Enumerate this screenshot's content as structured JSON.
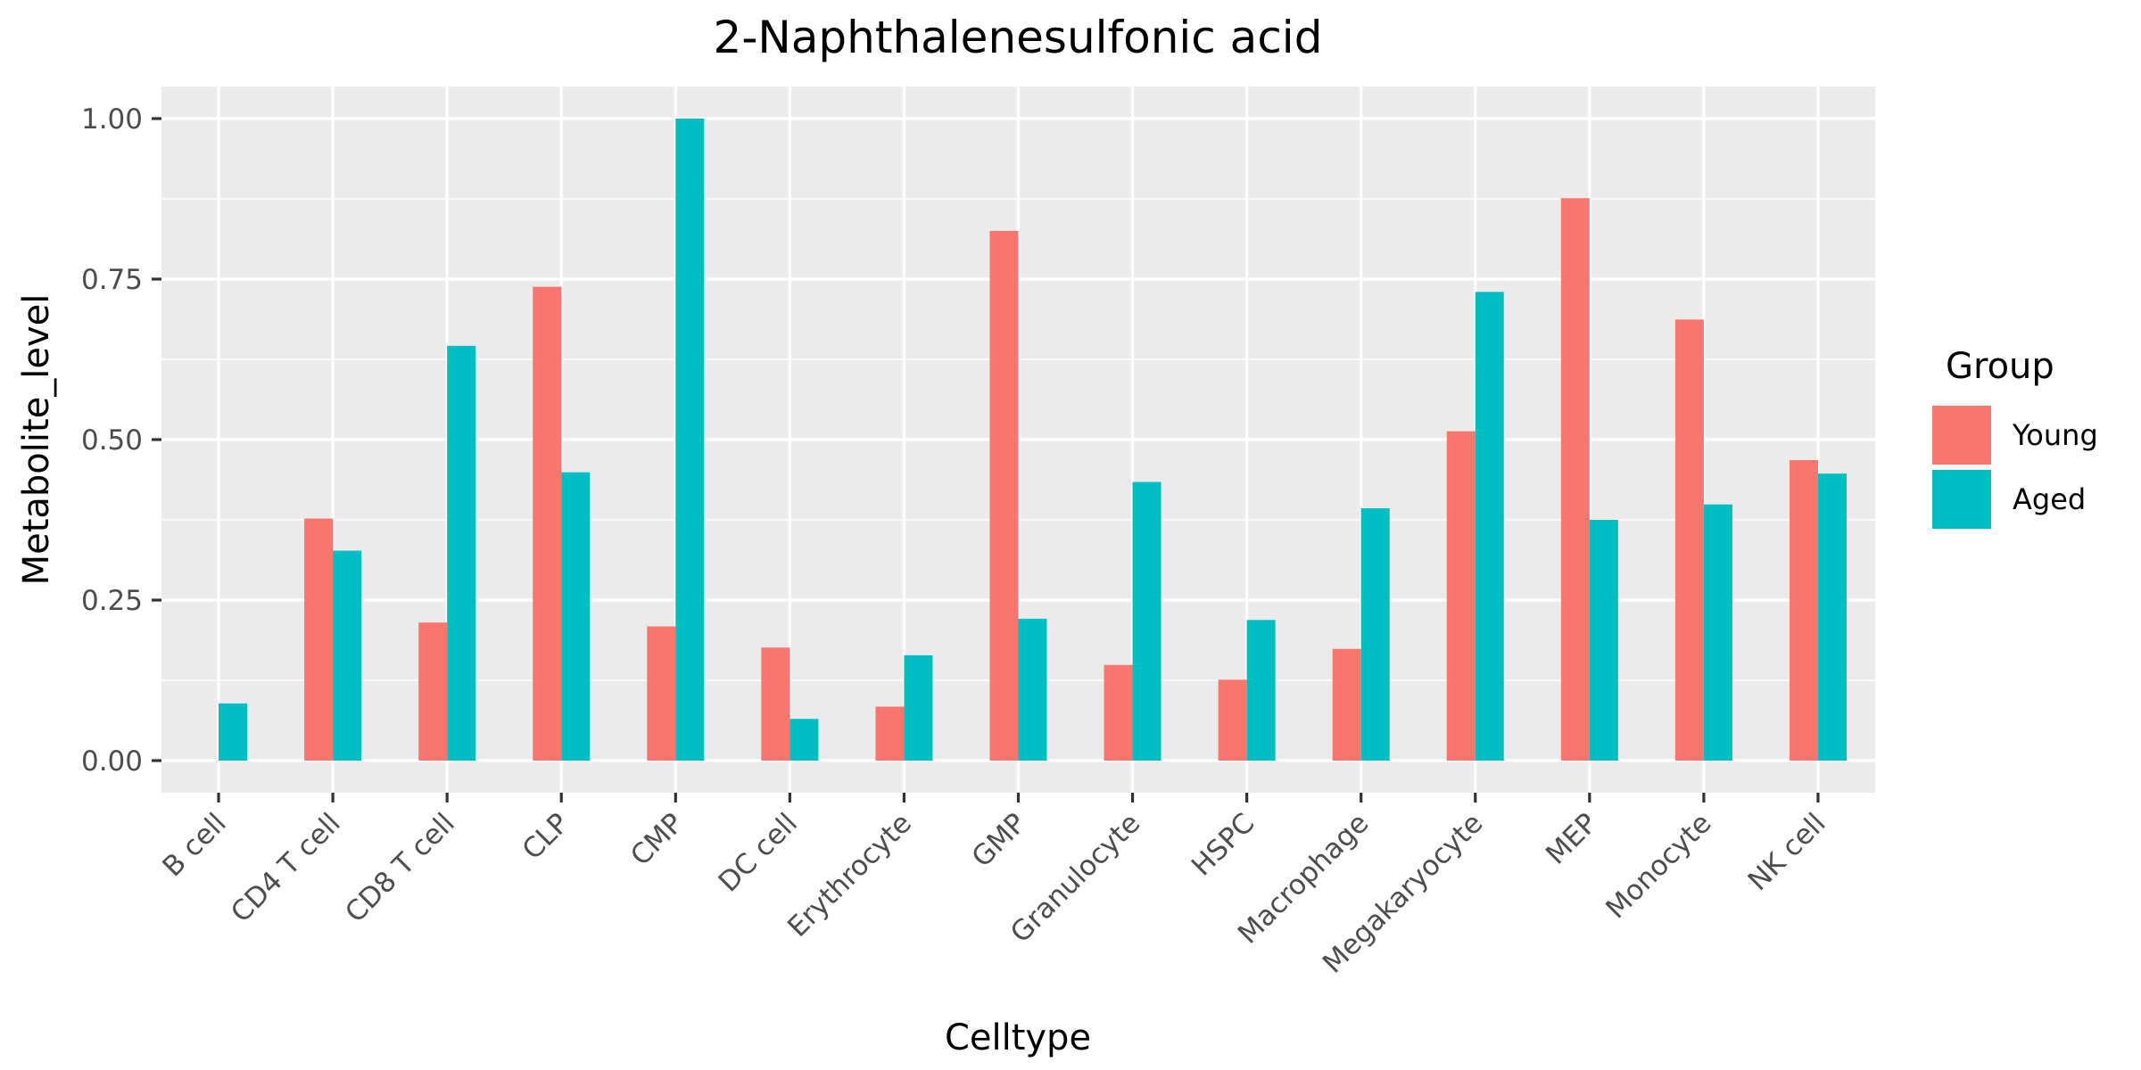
{
  "chart_data": {
    "type": "bar",
    "title": "2-Naphthalenesulfonic acid",
    "xlabel": "Celltype",
    "ylabel": "Metabolite_level",
    "categories": [
      "B cell",
      "CD4 T cell",
      "CD8 T cell",
      "CLP",
      "CMP",
      "DC cell",
      "Erythrocyte",
      "GMP",
      "Granulocyte",
      "HSPC",
      "Macrophage",
      "Megakaryocyte",
      "MEP",
      "Monocyte",
      "NK cell"
    ],
    "series": [
      {
        "name": "Young",
        "color": "#F8766D",
        "values": [
          null,
          0.377,
          0.215,
          0.738,
          0.209,
          0.176,
          0.084,
          0.825,
          0.149,
          0.126,
          0.174,
          0.513,
          0.876,
          0.687,
          0.468
        ]
      },
      {
        "name": "Aged",
        "color": "#00BFC4",
        "values": [
          0.089,
          0.327,
          0.646,
          0.449,
          1.0,
          0.065,
          0.164,
          0.221,
          0.434,
          0.219,
          0.393,
          0.73,
          0.375,
          0.399,
          0.447
        ]
      }
    ],
    "ylim": [
      -0.05,
      1.05
    ],
    "yticks": [
      0,
      0.25,
      0.5,
      0.75,
      1.0
    ],
    "ytick_labels": [
      "0.00",
      "0.25",
      "0.50",
      "0.75",
      "1.00"
    ],
    "legend": {
      "title": "Group",
      "position": "right"
    },
    "grid": true,
    "panel_background": "#EBEBEB"
  }
}
